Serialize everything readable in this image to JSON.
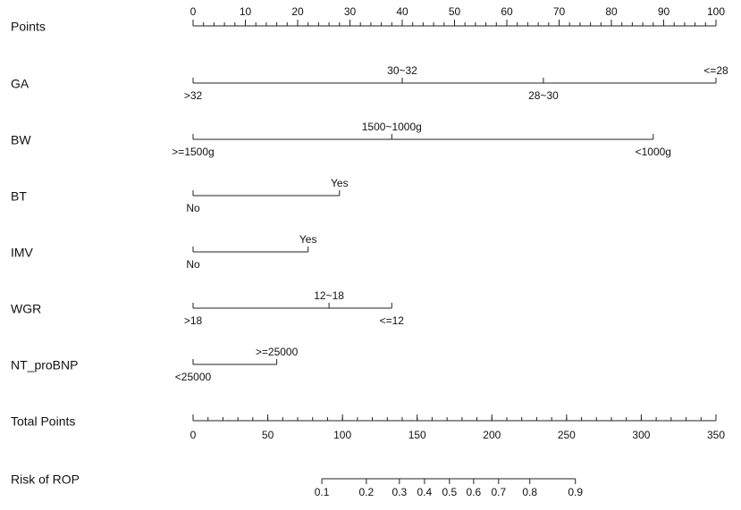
{
  "chart_data": {
    "type": "nomogram",
    "points_axis": {
      "label": "Points",
      "xlim": [
        0,
        100
      ],
      "xticks": [
        0,
        10,
        20,
        30,
        40,
        50,
        60,
        70,
        80,
        90,
        100
      ],
      "minor_ticks": [
        0,
        2,
        4,
        6,
        8,
        10,
        12,
        14,
        16,
        18,
        20,
        22,
        24,
        26,
        28,
        30,
        32,
        34,
        36,
        38,
        40,
        42,
        44,
        46,
        48,
        50,
        52,
        54,
        56,
        58,
        60,
        62,
        64,
        66,
        68,
        70,
        72,
        74,
        76,
        78,
        80,
        82,
        84,
        86,
        88,
        90,
        92,
        94,
        96,
        98,
        100
      ]
    },
    "variables": [
      {
        "name": "GA",
        "levels": [
          {
            "label": ">32",
            "points": 0
          },
          {
            "label": "30~32",
            "points": 40
          },
          {
            "label": "28~30",
            "points": 67
          },
          {
            "label": "<=28",
            "points": 100
          }
        ]
      },
      {
        "name": "BW",
        "levels": [
          {
            "label": ">=1500g",
            "points": 0
          },
          {
            "label": "1500~1000g",
            "points": 38
          },
          {
            "label": "<1000g",
            "points": 88
          }
        ]
      },
      {
        "name": "BT",
        "levels": [
          {
            "label": "No",
            "points": 0
          },
          {
            "label": "Yes",
            "points": 28
          }
        ]
      },
      {
        "name": "IMV",
        "levels": [
          {
            "label": "No",
            "points": 0
          },
          {
            "label": "Yes",
            "points": 22
          }
        ]
      },
      {
        "name": "WGR",
        "levels": [
          {
            "label": ">18",
            "points": 0
          },
          {
            "label": "12~18",
            "points": 26
          },
          {
            "label": "<=12",
            "points": 38
          }
        ]
      },
      {
        "name": "NT_proBNP",
        "levels": [
          {
            "label": "<25000",
            "points": 0
          },
          {
            "label": ">=25000",
            "points": 16
          }
        ]
      }
    ],
    "total_axis": {
      "label": "Total Points",
      "xlim": [
        0,
        350
      ],
      "xticks": [
        0,
        50,
        100,
        150,
        200,
        250,
        300,
        350
      ],
      "minor_ticks": [
        0,
        10,
        20,
        30,
        40,
        50,
        60,
        70,
        80,
        90,
        100,
        110,
        120,
        130,
        140,
        150,
        160,
        170,
        180,
        190,
        200,
        210,
        220,
        230,
        240,
        250,
        260,
        270,
        280,
        290,
        300,
        310,
        320,
        330,
        340,
        350
      ]
    },
    "risk_axis": {
      "label": "Risk of ROP",
      "ticks": [
        {
          "value": 0.1,
          "points": 86.2
        },
        {
          "value": 0.2,
          "points": 116
        },
        {
          "value": 0.3,
          "points": 138.1
        },
        {
          "value": 0.4,
          "points": 154.9
        },
        {
          "value": 0.5,
          "points": 171.6
        },
        {
          "value": 0.6,
          "points": 187.8
        },
        {
          "value": 0.7,
          "points": 204.5
        },
        {
          "value": 0.8,
          "points": 225.4
        },
        {
          "value": 0.9,
          "points": 255.9
        }
      ]
    }
  }
}
